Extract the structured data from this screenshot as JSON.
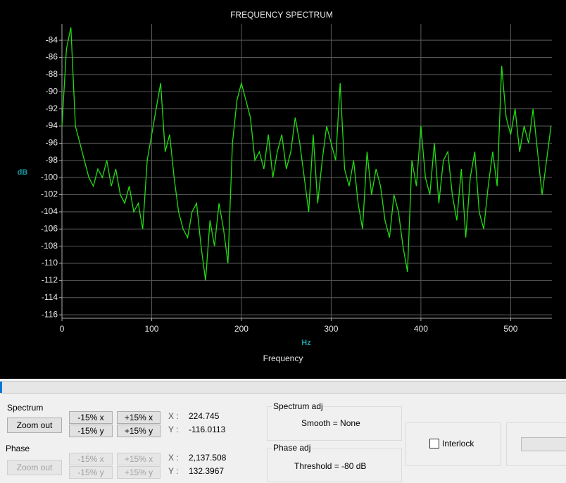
{
  "chart_data": {
    "type": "line",
    "title": "FREQUENCY SPECTRUM",
    "y_label": "dB",
    "x_unit": "Hz",
    "x_label": "Frequency",
    "color": "#22dd11",
    "grid": true,
    "xlim": [
      0,
      546
    ],
    "ylim": [
      -116.4,
      -82.1
    ],
    "xticks": [
      0,
      100,
      200,
      300,
      400,
      500
    ],
    "yticks": [
      -116,
      -114,
      -112,
      -110,
      -108,
      -106,
      -104,
      -102,
      -100,
      -98,
      -96,
      -94,
      -92,
      -90,
      -88,
      -86,
      -84
    ],
    "x": [
      0,
      5,
      10,
      15,
      20,
      25,
      30,
      35,
      40,
      45,
      50,
      55,
      60,
      65,
      70,
      75,
      80,
      85,
      90,
      95,
      100,
      105,
      110,
      115,
      120,
      125,
      130,
      135,
      140,
      145,
      150,
      155,
      160,
      165,
      170,
      175,
      180,
      185,
      190,
      195,
      200,
      205,
      210,
      215,
      220,
      225,
      230,
      235,
      240,
      245,
      250,
      255,
      260,
      265,
      270,
      275,
      280,
      285,
      290,
      295,
      300,
      305,
      310,
      315,
      320,
      325,
      330,
      335,
      340,
      345,
      350,
      355,
      360,
      365,
      370,
      375,
      380,
      385,
      390,
      395,
      400,
      405,
      410,
      415,
      420,
      425,
      430,
      435,
      440,
      445,
      450,
      455,
      460,
      465,
      470,
      475,
      480,
      485,
      490,
      495,
      500,
      505,
      510,
      515,
      520,
      525,
      530,
      535,
      540,
      545
    ],
    "values": [
      -94,
      -85,
      -82.5,
      -94,
      -96,
      -98,
      -100,
      -101,
      -99,
      -100,
      -98,
      -101,
      -99,
      -102,
      -103,
      -101,
      -104,
      -103,
      -106,
      -98,
      -95,
      -92,
      -89,
      -97,
      -95,
      -100,
      -104,
      -106,
      -107,
      -104,
      -103,
      -108,
      -112,
      -105,
      -108,
      -103,
      -106,
      -110,
      -96,
      -91,
      -89,
      -91,
      -93,
      -98,
      -97,
      -99,
      -95,
      -100,
      -97,
      -95,
      -99,
      -97,
      -93,
      -96,
      -100,
      -104,
      -95,
      -103,
      -98,
      -94,
      -96,
      -98,
      -89,
      -99,
      -101,
      -98,
      -103,
      -106,
      -97,
      -102,
      -99,
      -101,
      -105,
      -107,
      -102,
      -104,
      -108,
      -111,
      -98,
      -101,
      -94,
      -100,
      -102,
      -96,
      -103,
      -98,
      -97,
      -102,
      -105,
      -99,
      -107,
      -100,
      -97,
      -104,
      -106,
      -101,
      -97,
      -101,
      -87,
      -93,
      -95,
      -92,
      -97,
      -94,
      -96,
      -92,
      -97,
      -102,
      -98,
      -94
    ]
  },
  "controls": {
    "spectrum": {
      "label": "Spectrum",
      "zoom_out": "Zoom out",
      "minus_x": "-15% x",
      "plus_x": "+15% x",
      "minus_y": "-15% y",
      "plus_y": "+15% y",
      "x_label": "X :",
      "x_value": "224.745",
      "y_label": "Y :",
      "y_value": "-116.0113"
    },
    "phase": {
      "label": "Phase",
      "zoom_out": "Zoom out",
      "minus_x": "-15% x",
      "plus_x": "+15% x",
      "minus_y": "-15% y",
      "plus_y": "+15% y",
      "x_label": "X :",
      "x_value": "2,137.508",
      "y_label": "Y :",
      "y_value": "132.3967"
    },
    "spectrum_adj": {
      "label": "Spectrum adj",
      "text": "Smooth = None"
    },
    "phase_adj": {
      "label": "Phase adj",
      "text": "Threshold = -80 dB"
    },
    "interlock": "Interlock"
  }
}
